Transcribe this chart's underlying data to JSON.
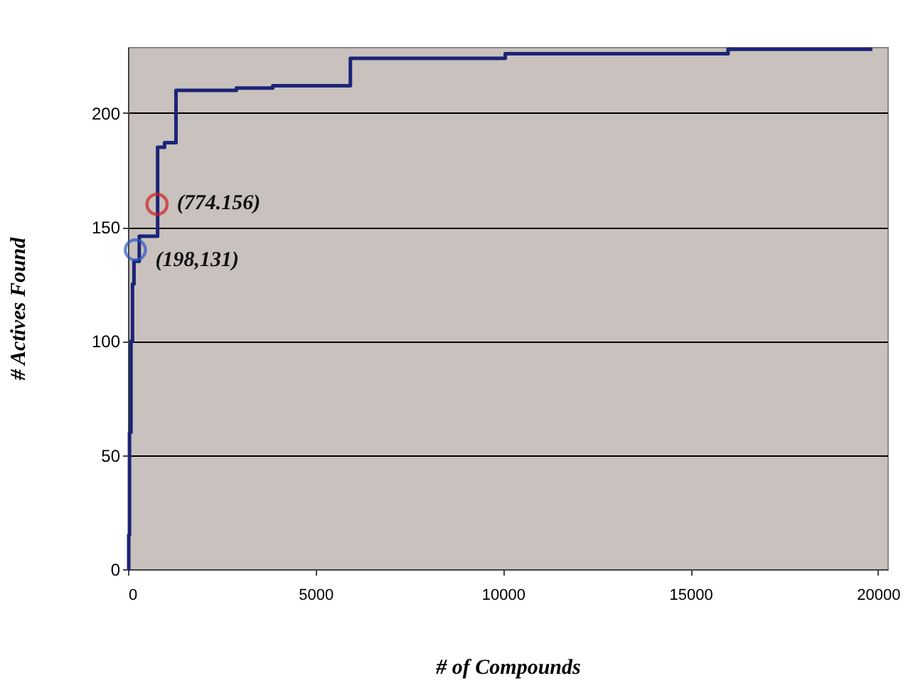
{
  "chart_data": {
    "type": "step",
    "xlabel": "#  of Compounds",
    "ylabel": "# Actives Found",
    "xlim": [
      0,
      20250
    ],
    "ylim": [
      0,
      229
    ],
    "xticks": [
      0,
      5000,
      10000,
      15000,
      20000
    ],
    "yticks": [
      0,
      50,
      100,
      150,
      200
    ],
    "grid": "y",
    "series": [
      {
        "color": "#1c2478",
        "x": [
          0,
          20,
          40,
          80,
          120,
          160,
          300,
          790,
          975,
          1280,
          2890,
          3860,
          5930,
          10060,
          16000,
          19850
        ],
        "values": [
          0,
          15,
          60,
          100,
          125,
          135,
          146,
          185,
          187,
          210,
          211,
          212,
          224,
          226,
          228,
          228
        ]
      },
      {
        "type": "scatter",
        "marker": "circle",
        "colors": [
          "#2a55c8",
          "#d02020"
        ],
        "x": [
          198,
          774
        ],
        "values": [
          140,
          160
        ]
      }
    ],
    "annotations": [
      {
        "text": "(774.156)",
        "x": 774,
        "y": 156
      },
      {
        "text": "(198,131)",
        "x": 198,
        "y": 131
      }
    ]
  }
}
